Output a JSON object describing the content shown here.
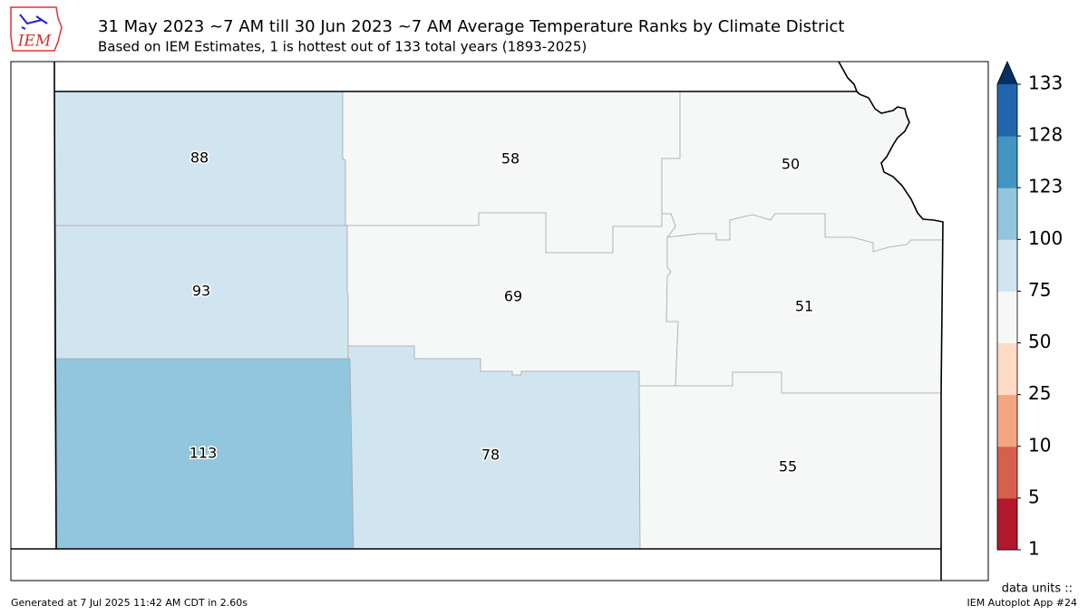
{
  "header": {
    "logo": "IEM",
    "title": "31 May 2023 ~7 AM till 30 Jun 2023 ~7 AM Average Temperature Ranks by Climate District",
    "subtitle": "Based on IEM Estimates, 1 is hottest out of 133 total years (1893-2025)"
  },
  "districts": [
    {
      "value": 88
    },
    {
      "value": 58
    },
    {
      "value": 50
    },
    {
      "value": 93
    },
    {
      "value": 69
    },
    {
      "value": 51
    },
    {
      "value": 113
    },
    {
      "value": 78
    },
    {
      "value": 55
    }
  ],
  "colorbar": {
    "ticks": [
      1,
      5,
      10,
      25,
      50,
      75,
      100,
      123,
      128,
      133
    ],
    "colors": [
      "#b2182b",
      "#d6604d",
      "#f4a582",
      "#fddbc7",
      "#f6f7f7",
      "#d1e5f0",
      "#92c5de",
      "#4393c3",
      "#2166ac"
    ],
    "extend_color": "#053061"
  },
  "footer": {
    "generated": "Generated at 7 Jul 2025 11:42 AM CDT in 2.60s",
    "units": "data units ::",
    "app": "IEM Autoplot App #24"
  }
}
